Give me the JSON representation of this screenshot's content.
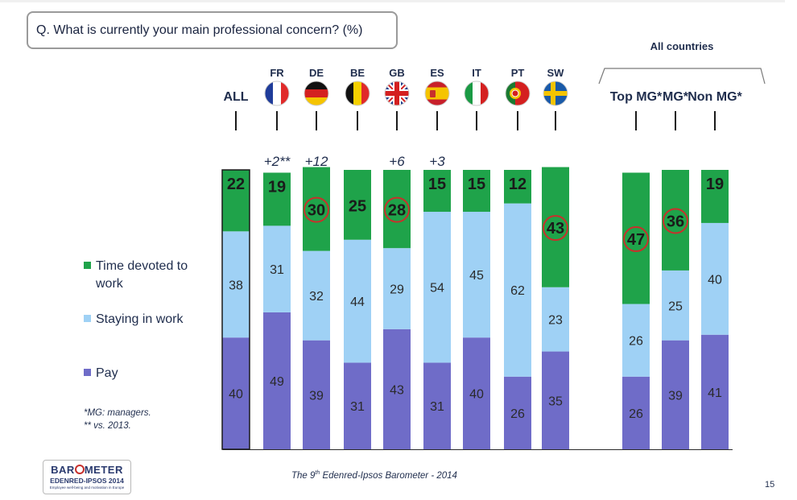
{
  "question": "Q. What is currently your main professional concern? (%)",
  "group_label": "All countries",
  "legend": [
    {
      "label": "Time devoted to work",
      "color": "#1fa34a"
    },
    {
      "label": "Staying in work",
      "color": "#9fd1f5"
    },
    {
      "label": "Pay",
      "color": "#6f6cc8"
    }
  ],
  "notes": [
    "*MG: managers.",
    "** vs. 2013."
  ],
  "footer": {
    "text": "The 9",
    "sup": "th",
    "rest": " Edenred-Ipsos Barometer - 2014"
  },
  "page_number": "15",
  "logo": {
    "line1a": "BAR",
    "line1b": "METER",
    "line2": "EDENRED-IPSOS 2014",
    "line3": "Employee well-being and motivation in Europe"
  },
  "colors": {
    "highlight_circle": "#c8302c",
    "text": "#1f2d4d"
  },
  "chart_data": {
    "type": "bar",
    "stacked": true,
    "orientation": "vertical",
    "categories": [
      "ALL",
      "FR",
      "DE",
      "BE",
      "GB",
      "ES",
      "IT",
      "PT",
      "SW",
      "Top MG*",
      "MG*",
      "Non MG*"
    ],
    "flags": [
      "",
      "france-flag",
      "germany-flag",
      "belgium-flag",
      "uk-flag",
      "spain-flag",
      "italy-flag",
      "portugal-flag",
      "sweden-flag",
      "",
      "",
      ""
    ],
    "series": [
      {
        "name": "Pay",
        "color": "#6f6cc8",
        "values": [
          40,
          49,
          39,
          31,
          43,
          31,
          40,
          26,
          35,
          26,
          39,
          41
        ]
      },
      {
        "name": "Staying in work",
        "color": "#9fd1f5",
        "values": [
          38,
          31,
          32,
          44,
          29,
          54,
          45,
          62,
          23,
          26,
          25,
          40
        ]
      },
      {
        "name": "Time devoted to work",
        "color": "#1fa34a",
        "values": [
          22,
          19,
          30,
          25,
          28,
          15,
          15,
          12,
          43,
          47,
          36,
          19
        ]
      }
    ],
    "changes_vs_2013": [
      "",
      "+2**",
      "+12",
      "",
      "+6",
      "+3",
      "",
      "",
      "",
      "",
      "",
      ""
    ],
    "circled_top_values": [
      false,
      false,
      true,
      false,
      true,
      false,
      false,
      false,
      true,
      true,
      true,
      false
    ],
    "outlined_bar": "ALL",
    "ylim": [
      0,
      100
    ],
    "grid": false,
    "legend_position": "left"
  }
}
